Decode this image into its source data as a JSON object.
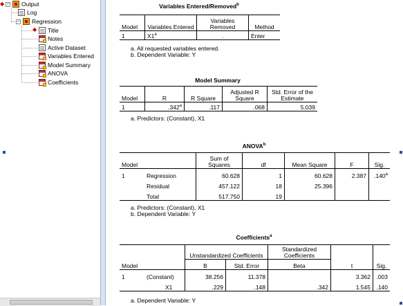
{
  "tree": {
    "output": "Output",
    "log": "Log",
    "regression": "Regression",
    "title": "Title",
    "notes": "Notes",
    "active_dataset": "Active Dataset",
    "variables_entered": "Variables Entered",
    "model_summary": "Model Summary",
    "anova": "ANOVA",
    "coefficients": "Coefficients"
  },
  "variables_entered": {
    "title": "Variables Entered/Removed",
    "title_sup": "b",
    "headers": [
      "Model",
      "Variables Entered",
      "Variables Removed",
      "Method"
    ],
    "row": {
      "model": "1",
      "entered": "X1",
      "entered_sup": "a",
      "removed": ".",
      "method": "Enter"
    },
    "notes": [
      "a. All requested variables entered.",
      "b. Dependent Variable: Y"
    ]
  },
  "model_summary": {
    "title": "Model Summary",
    "headers": [
      "Model",
      "R",
      "R Square",
      "Adjusted R Square",
      "Std. Error of the Estimate"
    ],
    "row": {
      "model": "1",
      "r": ".342",
      "r_sup": "a",
      "r_square": ".117",
      "adj_r_square": ".068",
      "std_error": "5.039"
    },
    "notes": [
      "a. Predictors: (Constant), X1"
    ]
  },
  "anova": {
    "title": "ANOVA",
    "title_sup": "b",
    "headers": [
      "Model",
      "Sum of Squares",
      "df",
      "Mean Square",
      "F",
      "Sig."
    ],
    "model": "1",
    "rows": [
      {
        "label": "Regression",
        "ss": "60.628",
        "df": "1",
        "ms": "60.628",
        "f": "2.387",
        "sig": ".140",
        "sig_sup": "a"
      },
      {
        "label": "Residual",
        "ss": "457.122",
        "df": "18",
        "ms": "25.396",
        "f": "",
        "sig": "",
        "sig_sup": ""
      },
      {
        "label": "Total",
        "ss": "517.750",
        "df": "19",
        "ms": "",
        "f": "",
        "sig": "",
        "sig_sup": ""
      }
    ],
    "notes": [
      "a. Predictors: (Constant), X1",
      "b. Dependent Variable: Y"
    ]
  },
  "coefficients": {
    "title": "Coefficients",
    "title_sup": "a",
    "group_unstd": "Unstandardized Coefficients",
    "group_std": "Standardized Coefficients",
    "headers": [
      "Model",
      "B",
      "Std. Error",
      "Beta",
      "t",
      "Sig."
    ],
    "model": "1",
    "rows": [
      {
        "label": "(Constant)",
        "b": "38.256",
        "se": "11.378",
        "beta": "",
        "t": "3.362",
        "sig": ".003"
      },
      {
        "label": "X1",
        "b": ".229",
        "se": ".148",
        "beta": ".342",
        "t": "1.545",
        "sig": ".140"
      }
    ],
    "notes": [
      "a. Dependent Variable: Y"
    ]
  }
}
